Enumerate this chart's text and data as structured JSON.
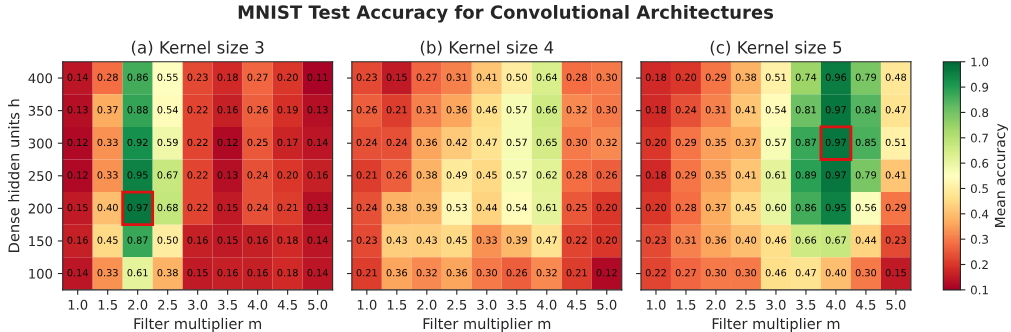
{
  "chart_data": [
    {
      "type": "heatmap",
      "title": "(a) Kernel size 3",
      "xlabel": "Filter multiplier m",
      "ylabel": "Dense hidden units h",
      "annotations": [
        "MNIST Test Accuracy for Convolutional Architectures",
        {
          "x": "2.0",
          "y": "200"
        }
      ],
      "categories": [
        "1.0",
        "1.5",
        "2.0",
        "2.5",
        "3.0",
        "3.5",
        "4.0",
        "4.5",
        "5.0"
      ],
      "y_categories": [
        "400",
        "350",
        "300",
        "250",
        "200",
        "150",
        "100"
      ],
      "cells": [
        [
          0.14,
          0.28,
          0.86,
          0.55,
          0.23,
          0.18,
          0.27,
          0.2,
          0.11
        ],
        [
          0.13,
          0.37,
          0.88,
          0.54,
          0.22,
          0.16,
          0.26,
          0.19,
          0.13
        ],
        [
          0.12,
          0.33,
          0.92,
          0.59,
          0.22,
          0.12,
          0.25,
          0.17,
          0.14
        ],
        [
          0.12,
          0.33,
          0.95,
          0.67,
          0.22,
          0.13,
          0.24,
          0.2,
          0.16
        ],
        [
          0.15,
          0.4,
          0.97,
          0.68,
          0.22,
          0.15,
          0.24,
          0.21,
          0.13
        ],
        [
          0.16,
          0.45,
          0.87,
          0.5,
          0.16,
          0.15,
          0.16,
          0.18,
          0.14
        ],
        [
          0.14,
          0.33,
          0.61,
          0.38,
          0.15,
          0.16,
          0.16,
          0.18,
          0.14
        ]
      ],
      "cell_labels": [
        [
          "0.14",
          "0.28",
          "0.86",
          "0.55",
          "0.23",
          "0.18",
          "0.27",
          "0.20",
          "0.11"
        ],
        [
          "0.13",
          "0.37",
          "0.88",
          "0.54",
          "0.22",
          "0.16",
          "0.26",
          "0.19",
          "0.13"
        ],
        [
          "0.12",
          "0.33",
          "0.92",
          "0.59",
          "0.22",
          "0.12",
          "0.25",
          "0.17",
          "0.14"
        ],
        [
          "0.12",
          "0.33",
          "0.95",
          "0.67",
          "0.22",
          "0.13",
          "0.24",
          "0.20",
          "0.16"
        ],
        [
          "0.15",
          "0.40",
          "0.97",
          "0.68",
          "0.22",
          "0.15",
          "0.24",
          "0.21",
          "0.13"
        ],
        [
          "0.16",
          "0.45",
          "0.87",
          "0.50",
          "0.16",
          "0.15",
          "0.16",
          "0.18",
          "0.14"
        ],
        [
          "0.14",
          "0.33",
          "0.61",
          "0.38",
          "0.15",
          "0.16",
          "0.16",
          "0.18",
          "0.14"
        ]
      ]
    },
    {
      "type": "heatmap",
      "title": "(b) Kernel size 4",
      "xlabel": "Filter multiplier m",
      "tick_labels": "x",
      "categories": [
        "1.0",
        "1.5",
        "2.0",
        "2.5",
        "3.0",
        "3.5",
        "4.0",
        "4.5",
        "5.0"
      ],
      "y_categories": [
        "400",
        "350",
        "300",
        "250",
        "200",
        "150",
        "100"
      ],
      "cells": [
        [
          0.23,
          0.15,
          0.27,
          0.31,
          0.41,
          0.5,
          0.64,
          0.28,
          0.3
        ],
        [
          0.26,
          0.21,
          0.31,
          0.36,
          0.46,
          0.57,
          0.66,
          0.32,
          0.3
        ],
        [
          0.24,
          0.24,
          0.36,
          0.42,
          0.47,
          0.57,
          0.65,
          0.3,
          0.32
        ],
        [
          0.21,
          0.26,
          0.38,
          0.49,
          0.45,
          0.57,
          0.62,
          0.28,
          0.26
        ],
        [
          0.24,
          0.38,
          0.39,
          0.53,
          0.44,
          0.54,
          0.61,
          0.25,
          0.2
        ],
        [
          0.23,
          0.43,
          0.43,
          0.45,
          0.33,
          0.39,
          0.47,
          0.22,
          0.2
        ],
        [
          0.21,
          0.36,
          0.32,
          0.36,
          0.3,
          0.26,
          0.32,
          0.21,
          0.12
        ]
      ],
      "cell_labels": [
        [
          "0.23",
          "0.15",
          "0.27",
          "0.31",
          "0.41",
          "0.50",
          "0.64",
          "0.28",
          "0.30"
        ],
        [
          "0.26",
          "0.21",
          "0.31",
          "0.36",
          "0.46",
          "0.57",
          "0.66",
          "0.32",
          "0.30"
        ],
        [
          "0.24",
          "0.24",
          "0.36",
          "0.42",
          "0.47",
          "0.57",
          "0.65",
          "0.30",
          "0.32"
        ],
        [
          "0.21",
          "0.26",
          "0.38",
          "0.49",
          "0.45",
          "0.57",
          "0.62",
          "0.28",
          "0.26"
        ],
        [
          "0.24",
          "0.38",
          "0.39",
          "0.53",
          "0.44",
          "0.54",
          "0.61",
          "0.25",
          "0.20"
        ],
        [
          "0.23",
          "0.43",
          "0.43",
          "0.45",
          "0.33",
          "0.39",
          "0.47",
          "0.22",
          "0.20"
        ],
        [
          "0.21",
          "0.36",
          "0.32",
          "0.36",
          "0.30",
          "0.26",
          "0.32",
          "0.21",
          "0.12"
        ]
      ]
    },
    {
      "type": "heatmap",
      "title": "(c) Kernel size 5",
      "xlabel": "Filter multiplier m",
      "tick_labels": "x",
      "annotations": [
        {
          "x": "4.0",
          "y": "300"
        }
      ],
      "categories": [
        "1.0",
        "1.5",
        "2.0",
        "2.5",
        "3.0",
        "3.5",
        "4.0",
        "4.5",
        "5.0"
      ],
      "y_categories": [
        "400",
        "350",
        "300",
        "250",
        "200",
        "150",
        "100"
      ],
      "cells": [
        [
          0.18,
          0.2,
          0.29,
          0.38,
          0.51,
          0.74,
          0.96,
          0.79,
          0.48
        ],
        [
          0.18,
          0.24,
          0.31,
          0.41,
          0.54,
          0.81,
          0.97,
          0.84,
          0.47
        ],
        [
          0.2,
          0.29,
          0.35,
          0.37,
          0.57,
          0.87,
          0.97,
          0.85,
          0.51
        ],
        [
          0.18,
          0.29,
          0.35,
          0.41,
          0.61,
          0.89,
          0.97,
          0.79,
          0.41
        ],
        [
          0.2,
          0.28,
          0.37,
          0.45,
          0.6,
          0.86,
          0.95,
          0.56,
          0.29
        ],
        [
          0.23,
          0.31,
          0.36,
          0.4,
          0.46,
          0.66,
          0.67,
          0.44,
          0.23
        ],
        [
          0.22,
          0.27,
          0.3,
          0.3,
          0.46,
          0.47,
          0.4,
          0.3,
          0.15
        ]
      ],
      "cell_labels": [
        [
          "0.18",
          "0.20",
          "0.29",
          "0.38",
          "0.51",
          "0.74",
          "0.96",
          "0.79",
          "0.48"
        ],
        [
          "0.18",
          "0.24",
          "0.31",
          "0.41",
          "0.54",
          "0.81",
          "0.97",
          "0.84",
          "0.47"
        ],
        [
          "0.20",
          "0.29",
          "0.35",
          "0.37",
          "0.57",
          "0.87",
          "0.97",
          "0.85",
          "0.51"
        ],
        [
          "0.18",
          "0.29",
          "0.35",
          "0.41",
          "0.61",
          "0.89",
          "0.97",
          "0.79",
          "0.41"
        ],
        [
          "0.20",
          "0.28",
          "0.37",
          "0.45",
          "0.60",
          "0.86",
          "0.95",
          "0.56",
          "0.29"
        ],
        [
          "0.23",
          "0.31",
          "0.36",
          "0.40",
          "0.46",
          "0.66",
          "0.67",
          "0.44",
          "0.23"
        ],
        [
          "0.22",
          "0.27",
          "0.30",
          "0.30",
          "0.46",
          "0.47",
          "0.40",
          "0.30",
          "0.15"
        ]
      ],
      "clim": [
        0.1,
        1.0
      ],
      "cticks": [
        0.1,
        0.2,
        0.3,
        0.4,
        0.5,
        0.6,
        0.7,
        0.8,
        0.9,
        {
          "value": 1,
          "label": "1.0"
        }
      ],
      "clabel": "Mean accuracy"
    }
  ]
}
